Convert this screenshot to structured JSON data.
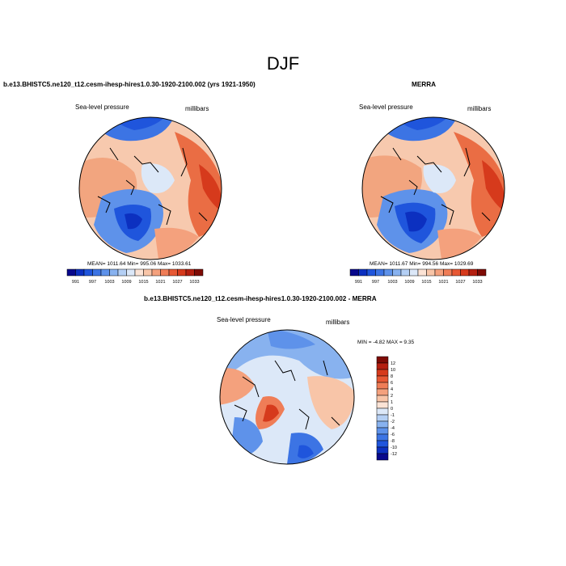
{
  "page": {
    "season_title": "DJF"
  },
  "panels": [
    {
      "id": "model",
      "title": "b.e13.BHISTC5.ne120_t12.cesm-ihesp-hires1.0.30-1920-2100.002 (yrs 1921-1950)",
      "left_label": "Sea-level pressure",
      "right_label": "millibars",
      "stats_text": "MEAN= 1011.64  Min= 995.06  Max= 1033.61"
    },
    {
      "id": "merra",
      "title": "MERRA",
      "left_label": "Sea-level pressure",
      "right_label": "millibars",
      "stats_text": "MEAN= 1011.67  Min= 994.56  Max= 1029.69"
    },
    {
      "id": "diff",
      "title": "b.e13.BHISTC5.ne120_t12.cesm-ihesp-hires1.0.30-1920-2100.002 - MERRA",
      "left_label": "Sea-level pressure",
      "right_label": "millibars",
      "stats_text": "MIN =  -4.82 MAX =   9.35"
    }
  ],
  "colorbar_field": {
    "labels": [
      "991",
      "997",
      "1003",
      "1009",
      "1015",
      "1021",
      "1027",
      "1033"
    ],
    "colors": [
      "#08088c",
      "#0c30c0",
      "#1f55dc",
      "#3c74e4",
      "#5e92ea",
      "#88b2ef",
      "#b4cff4",
      "#dce8f8",
      "#fbe3d5",
      "#f8c5a8",
      "#f4a17d",
      "#ef7d57",
      "#e75834",
      "#d63a1c",
      "#b41f10",
      "#7e0b05"
    ]
  },
  "colorbar_diff": {
    "labels": [
      "12",
      "10",
      "8",
      "6",
      "4",
      "2",
      "1",
      "0",
      "-1",
      "-2",
      "-4",
      "-6",
      "-8",
      "-10",
      "-12"
    ],
    "colors": [
      "#7e0b05",
      "#b41f10",
      "#d63a1c",
      "#e75834",
      "#ef7d57",
      "#f4a17d",
      "#f8c5a8",
      "#fbe3d5",
      "#dce8f8",
      "#b4cff4",
      "#88b2ef",
      "#5e92ea",
      "#3c74e4",
      "#1f55dc",
      "#0c30c0",
      "#08088c"
    ]
  }
}
